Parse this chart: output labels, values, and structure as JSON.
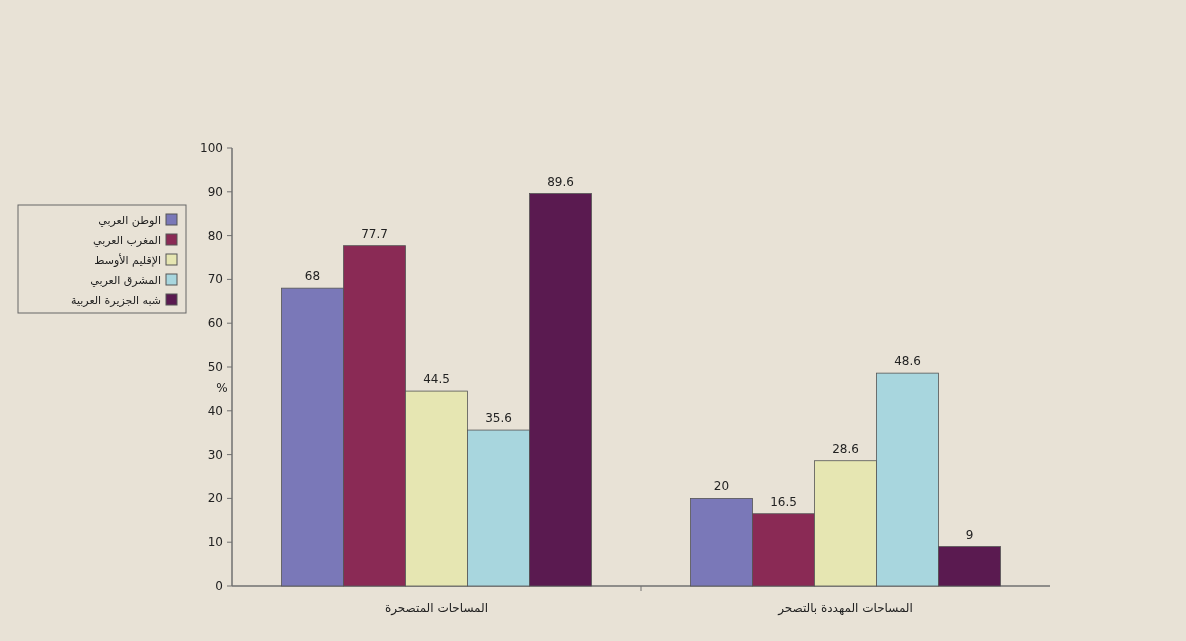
{
  "chart_data": {
    "type": "bar",
    "ylabel": "%",
    "categories": [
      "المساحات المتصحرة",
      "المساحات المهددة بالتصحر"
    ],
    "series": [
      {
        "name": "الوطن العربي",
        "color": "#7a78b8",
        "values": [
          68,
          20
        ]
      },
      {
        "name": "المغرب العربي",
        "color": "#8a2a55",
        "values": [
          77.7,
          16.5
        ]
      },
      {
        "name": "الإقليم الأوسط",
        "color": "#e6e6b2",
        "values": [
          44.5,
          28.6
        ]
      },
      {
        "name": "المشرق العربي",
        "color": "#a8d6de",
        "values": [
          35.6,
          48.6
        ]
      },
      {
        "name": "شبه الجزيرة العربية",
        "color": "#5a1a50",
        "values": [
          89.6,
          9
        ]
      }
    ],
    "ylim": [
      0,
      100
    ],
    "yticks": [
      0,
      10,
      20,
      30,
      40,
      50,
      60,
      70,
      80,
      90,
      100
    ],
    "data_labels": true,
    "legend": "left",
    "grid": false
  }
}
